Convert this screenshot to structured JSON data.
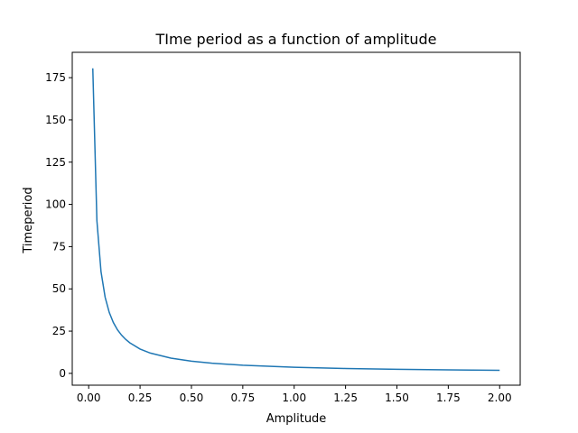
{
  "chart_data": {
    "type": "line",
    "title": "TIme period as a function of amplitude",
    "xlabel": "Amplitude",
    "ylabel": "Timeperiod",
    "xlim": [
      -0.08,
      2.1
    ],
    "ylim": [
      -7,
      190
    ],
    "xticks": [
      0.0,
      0.25,
      0.5,
      0.75,
      1.0,
      1.25,
      1.5,
      1.75,
      2.0
    ],
    "xtick_labels": [
      "0.00",
      "0.25",
      "0.50",
      "0.75",
      "1.00",
      "1.25",
      "1.50",
      "1.75",
      "2.00"
    ],
    "yticks": [
      0,
      25,
      50,
      75,
      100,
      125,
      150,
      175
    ],
    "ytick_labels": [
      "0",
      "25",
      "50",
      "75",
      "100",
      "125",
      "150",
      "175"
    ],
    "grid": false,
    "series": [
      {
        "color": "#1f77b4",
        "x": [
          0.02,
          0.04,
          0.06,
          0.08,
          0.1,
          0.12,
          0.14,
          0.16,
          0.18,
          0.2,
          0.25,
          0.3,
          0.4,
          0.5,
          0.6,
          0.75,
          1.0,
          1.25,
          1.5,
          1.75,
          2.0
        ],
        "y": [
          180.5,
          90.3,
          60.2,
          45.1,
          36.1,
          30.1,
          25.8,
          22.6,
          20.1,
          18.1,
          14.4,
          12.0,
          9.0,
          7.2,
          6.0,
          4.8,
          3.6,
          2.9,
          2.4,
          2.1,
          1.8
        ]
      }
    ]
  }
}
